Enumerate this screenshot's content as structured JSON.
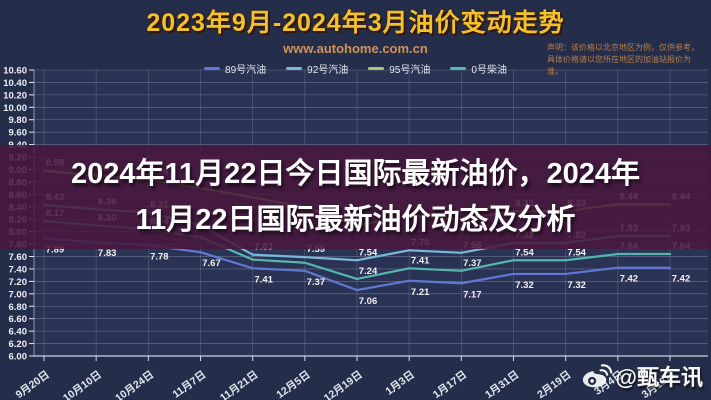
{
  "header": {
    "title": "2023年9月-2024年3月油价变动走势",
    "website": "www.autohome.com.cn",
    "disclaimer_line1": "声明：该价格以北京地区为例，仅供参考，",
    "disclaimer_line2": "具体价格请以您所在地区的加油站报价为准。"
  },
  "overlay": {
    "line1": "2024年11月22日今日国际最新油价，2024年",
    "line2": "11月22日国际最新油价动态及分析"
  },
  "watermark": {
    "handle": "@甄车讯"
  },
  "chart_data": {
    "type": "line",
    "title": "2023年9月-2024年3月油价变动走势",
    "x": [
      "9月20日",
      "10月10日",
      "10月24日",
      "11月7日",
      "11月21日",
      "12月5日",
      "12月19日",
      "1月3日",
      "1月17日",
      "1月31日",
      "2月19日",
      "3月4日",
      "3月18日"
    ],
    "ylim": [
      6.0,
      10.6
    ],
    "ytick_step": 0.2,
    "grid": true,
    "legend_position": "top",
    "unit": "元/升",
    "series": [
      {
        "name": "89号汽油",
        "color": "#5e79d4",
        "values": [
          7.89,
          7.83,
          7.78,
          7.67,
          7.41,
          7.37,
          7.06,
          7.21,
          7.17,
          7.32,
          7.32,
          7.42,
          7.42
        ],
        "labels": [
          "7.89",
          "7.83",
          "7.78",
          "7.67",
          "7.41",
          "7.37",
          "7.06",
          "7.21",
          "7.17",
          "7.32",
          "7.32",
          "7.42",
          "7.42"
        ]
      },
      {
        "name": "92号汽油",
        "color": "#79b8dc",
        "values": [
          8.43,
          8.36,
          8.31,
          8.1,
          7.63,
          7.59,
          7.54,
          7.7,
          7.66,
          7.82,
          7.82,
          7.93,
          7.93
        ],
        "labels": [
          "8.43",
          "8.36",
          "8.31",
          "",
          "7.63",
          "7.59",
          "7.54",
          "7.70",
          "7.66",
          "7.82",
          "7.82",
          "7.93",
          "7.93"
        ]
      },
      {
        "name": "95号汽油",
        "color": "#a4ca6d",
        "values": [
          8.98,
          8.9,
          8.84,
          8.7,
          8.55,
          8.4,
          8.1,
          8.26,
          8.2,
          8.33,
          8.33,
          8.44,
          8.44
        ],
        "labels": [
          "8.98",
          "8.90",
          "8.84",
          "",
          "",
          "",
          "",
          "",
          "",
          "8.33",
          "8.33",
          "8.44",
          "8.44"
        ]
      },
      {
        "name": "0号柴油",
        "color": "#55b8ad",
        "values": [
          8.17,
          8.1,
          8.04,
          7.91,
          7.55,
          7.5,
          7.24,
          7.41,
          7.37,
          7.54,
          7.54,
          7.64,
          7.64
        ],
        "labels": [
          "8.17",
          "8.10",
          "8.04",
          "",
          "",
          "",
          "7.24",
          "7.41",
          "7.37",
          "7.54",
          "7.54",
          "7.64",
          "7.64"
        ]
      }
    ]
  }
}
